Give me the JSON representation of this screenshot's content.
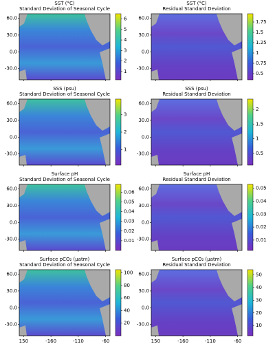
{
  "axes": {
    "xlim": [
      142,
      -52
    ],
    "ylim": [
      -50,
      68
    ],
    "xticks": [
      150,
      -160,
      -110,
      -60
    ],
    "yticks": [
      {
        "value": 60,
        "label": "60.0"
      },
      {
        "value": 30,
        "label": "30.0"
      },
      {
        "value": 0,
        "label": "0.0"
      },
      {
        "value": -30,
        "label": "-30.0"
      }
    ]
  },
  "panels": [
    {
      "title": "SST (°C)",
      "subtitle": "Standard Deviation of Seasonal Cycle",
      "cbar_lim": [
        0.2,
        6.5
      ],
      "cbar_ticks": [
        1,
        2,
        3,
        4,
        5,
        6
      ]
    },
    {
      "title": "SST (°C)",
      "subtitle": "Residual Standard Deviation",
      "cbar_lim": [
        0.35,
        1.95
      ],
      "cbar_ticks": [
        0.5,
        0.75,
        1.0,
        1.25,
        1.5,
        1.75
      ]
    },
    {
      "title": "SSS (psu)",
      "subtitle": "Standard Deviation of Seasonal Cycle",
      "cbar_lim": [
        0.1,
        3.9
      ],
      "cbar_ticks": [
        1,
        2,
        3
      ]
    },
    {
      "title": "SSS (psu)",
      "subtitle": "Residual Standard Deviation",
      "cbar_lim": [
        0.1,
        2.35
      ],
      "cbar_ticks": [
        0.5,
        1.0,
        1.5,
        2.0
      ]
    },
    {
      "title": "Surface pH",
      "subtitle": "Standard Deviation of Seasonal Cycle",
      "cbar_lim": [
        0,
        0.068
      ],
      "cbar_ticks": [
        0.01,
        0.02,
        0.03,
        0.04,
        0.05,
        0.06
      ]
    },
    {
      "title": "Surface pH",
      "subtitle": "Residual Standard Deviation",
      "cbar_lim": [
        0.002,
        0.053
      ],
      "cbar_ticks": [
        0.01,
        0.02,
        0.03,
        0.04,
        0.05
      ]
    },
    {
      "title": "Surface pCO₂ (μatm)",
      "subtitle": "Standard Deviation of Seasonal Cycle",
      "cbar_lim": [
        0,
        105
      ],
      "cbar_ticks": [
        20,
        40,
        60,
        80,
        100
      ]
    },
    {
      "title": "Surface pCO₂ (μatm)",
      "subtitle": "Residual Standard Deviation",
      "cbar_lim": [
        2,
        54
      ],
      "cbar_ticks": [
        10,
        20,
        30,
        40,
        50
      ]
    }
  ]
}
